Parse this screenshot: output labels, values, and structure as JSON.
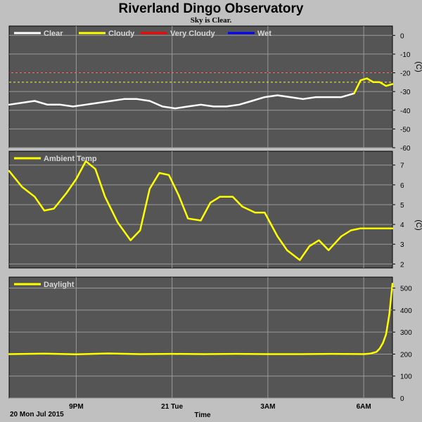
{
  "title": "Riverland Dingo Observatory",
  "subtitle": "Sky is Clear.",
  "xaxis": {
    "label": "Time",
    "date_label": "20 Mon Jul 2015",
    "ticks": [
      {
        "label": "9PM",
        "t": 21
      },
      {
        "label": "21 Tue",
        "t": 24
      },
      {
        "label": "3AM",
        "t": 27
      },
      {
        "label": "6AM",
        "t": 30
      }
    ],
    "range": [
      18.9,
      30.9
    ]
  },
  "colors": {
    "plot_bg": "#555555",
    "panel_frame": "#c0c0c0",
    "grid": "#9a9a9a",
    "clear": "#ffffff",
    "cloudy": "#ffff00",
    "very_cloudy": "#ff0000",
    "wet": "#0000ff",
    "series": "#ffff00"
  },
  "chart_data": [
    {
      "type": "line",
      "name": "sky",
      "legend": [
        {
          "label": "Clear",
          "color": "#ffffff"
        },
        {
          "label": "Cloudy",
          "color": "#ffff00"
        },
        {
          "label": "Very Cloudy",
          "color": "#ff0000"
        },
        {
          "label": "Wet",
          "color": "#0000ff"
        }
      ],
      "ylim": [
        -60,
        5
      ],
      "yticks": [
        0,
        -10,
        -20,
        -30,
        -40,
        -50,
        -60
      ],
      "unit": "(C)",
      "thresholds": [
        {
          "value": -20,
          "color": "#ff0000"
        },
        {
          "value": -25,
          "color": "#ffff00"
        }
      ],
      "series": [
        {
          "name": "Clear",
          "color": "#ffffff",
          "x": [
            18.9,
            19.3,
            19.7,
            20.1,
            20.5,
            20.9,
            21.3,
            21.7,
            22.1,
            22.5,
            22.9,
            23.3,
            23.7,
            24.1,
            24.5,
            24.9,
            25.3,
            25.7,
            26.1,
            26.5,
            26.9,
            27.3,
            27.7,
            28.1,
            28.5,
            28.9,
            29.3,
            29.7
          ],
          "y": [
            -37,
            -36,
            -35,
            -37,
            -37,
            -38,
            -37,
            -36,
            -35,
            -34,
            -34,
            -35,
            -38,
            -39,
            -38,
            -37,
            -38,
            -38,
            -37,
            -35,
            -33,
            -32,
            -33,
            -34,
            -33,
            -33,
            -33,
            -31
          ]
        },
        {
          "name": "Cloudy",
          "color": "#ffff00",
          "x": [
            29.7,
            29.9,
            30.1,
            30.3,
            30.5,
            30.7,
            30.9
          ],
          "y": [
            -31,
            -24,
            -23,
            -25,
            -25,
            -27,
            -26
          ]
        }
      ]
    },
    {
      "type": "line",
      "name": "temperature",
      "legend": [
        {
          "label": "Ambient Temp",
          "color": "#ffff00"
        }
      ],
      "ylim": [
        1.8,
        7.7
      ],
      "yticks": [
        7,
        6,
        5,
        4,
        3,
        2
      ],
      "unit": "(C)",
      "series": [
        {
          "name": "Ambient Temp",
          "color": "#ffff00",
          "x": [
            18.9,
            19.3,
            19.7,
            20.0,
            20.3,
            20.7,
            21.0,
            21.3,
            21.6,
            21.9,
            22.3,
            22.7,
            23.0,
            23.3,
            23.6,
            23.9,
            24.2,
            24.5,
            24.9,
            25.2,
            25.5,
            25.9,
            26.2,
            26.6,
            26.9,
            27.3,
            27.6,
            28.0,
            28.3,
            28.6,
            28.9,
            29.3,
            29.6,
            29.9,
            30.2,
            30.5,
            30.7,
            30.9
          ],
          "y": [
            6.7,
            5.9,
            5.4,
            4.7,
            4.8,
            5.6,
            6.3,
            7.2,
            6.8,
            5.4,
            4.1,
            3.2,
            3.7,
            5.8,
            6.6,
            6.5,
            5.5,
            4.3,
            4.2,
            5.1,
            5.4,
            5.4,
            4.9,
            4.6,
            4.6,
            3.4,
            2.7,
            2.2,
            2.9,
            3.2,
            2.7,
            3.4,
            3.7,
            3.8,
            3.8,
            3.8,
            3.8,
            3.8
          ]
        }
      ]
    },
    {
      "type": "line",
      "name": "daylight",
      "legend": [
        {
          "label": "Daylight",
          "color": "#ffff00"
        }
      ],
      "ylim": [
        0,
        550
      ],
      "yticks": [
        500,
        400,
        300,
        200,
        100,
        0
      ],
      "unit": "",
      "series": [
        {
          "name": "Daylight",
          "color": "#ffff00",
          "x": [
            18.9,
            20.0,
            21.0,
            22.0,
            23.0,
            24.0,
            25.0,
            26.0,
            27.0,
            28.0,
            29.0,
            30.0,
            30.2,
            30.4,
            30.5,
            30.6,
            30.7,
            30.8,
            30.9
          ],
          "y": [
            200,
            202,
            199,
            203,
            200,
            201,
            200,
            201,
            200,
            200,
            201,
            200,
            202,
            210,
            225,
            250,
            290,
            380,
            520
          ]
        }
      ]
    }
  ]
}
